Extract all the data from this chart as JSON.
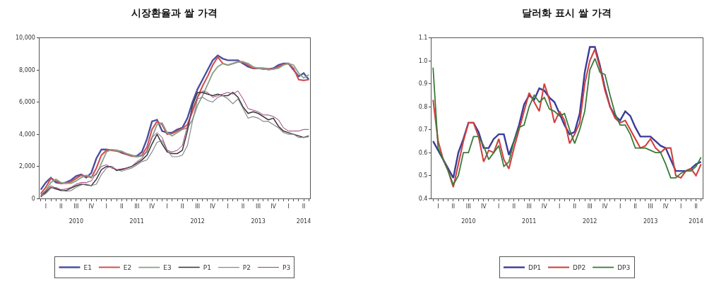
{
  "chart_data": [
    {
      "type": "line",
      "title": "시장환율과 쌀 가격",
      "legend": "bottom",
      "categories": [
        null,
        "I",
        null,
        null,
        "II",
        null,
        null,
        "III\n2010",
        null,
        null,
        "IV",
        null,
        null,
        "I",
        null,
        null,
        "II",
        null,
        null,
        "III\n2011",
        null,
        null,
        "IV",
        null,
        null,
        "I",
        null,
        null,
        "II",
        null,
        null,
        "III\n2012",
        null,
        null,
        "IV",
        null,
        null,
        "I",
        null,
        null,
        "II",
        null,
        null,
        "III\n2013",
        null,
        null,
        "IV",
        null,
        null,
        "I",
        null,
        null,
        "II\n2014",
        null
      ],
      "ylim": [
        0,
        10000
      ],
      "yticks": [
        {
          "value": 0,
          "label": "0"
        },
        {
          "value": 2000,
          "label": "2,000"
        },
        {
          "value": 4000,
          "label": "4,000"
        },
        {
          "value": 6000,
          "label": "6,000"
        },
        {
          "value": 8000,
          "label": "8,000"
        },
        {
          "value": 10000,
          "label": "10,000"
        }
      ],
      "series": [
        {
          "name": "E1",
          "color": "#4b4fa0",
          "values": [
            550,
            1000,
            1300,
            1000,
            950,
            1000,
            1150,
            1400,
            1500,
            1300,
            1600,
            2500,
            3050,
            3050,
            3000,
            3000,
            2850,
            2750,
            2650,
            2650,
            2900,
            3700,
            4800,
            4900,
            4200,
            4100,
            4100,
            4300,
            4400,
            5000,
            6000,
            6800,
            7400,
            8000,
            8600,
            8900,
            8700,
            8600,
            8600,
            8600,
            8400,
            8200,
            8100,
            8100,
            8100,
            8050,
            8100,
            8300,
            8400,
            8400,
            8000,
            7600,
            7800,
            7400
          ]
        },
        {
          "name": "E2",
          "color": "#d05050",
          "values": [
            300,
            700,
            1250,
            1100,
            950,
            950,
            1050,
            1250,
            1450,
            1400,
            1300,
            1900,
            2700,
            3000,
            3000,
            2950,
            2900,
            2750,
            2650,
            2600,
            2700,
            3200,
            4300,
            4800,
            4600,
            4000,
            4050,
            4200,
            4350,
            4600,
            5400,
            6300,
            7000,
            7600,
            8300,
            8800,
            8400,
            8300,
            8400,
            8500,
            8500,
            8300,
            8100,
            8100,
            8050,
            8050,
            8050,
            8200,
            8350,
            8400,
            8100,
            7400,
            7350,
            7400
          ]
        },
        {
          "name": "E3",
          "color": "#8aa08a",
          "values": [
            200,
            500,
            1000,
            1200,
            1000,
            950,
            950,
            1100,
            1300,
            1450,
            1350,
            1500,
            2200,
            2900,
            3050,
            3000,
            2950,
            2800,
            2700,
            2600,
            2650,
            2900,
            3800,
            4600,
            4700,
            4100,
            3900,
            4100,
            4300,
            4400,
            4900,
            5800,
            6400,
            7100,
            7800,
            8200,
            8400,
            8300,
            8400,
            8500,
            8500,
            8400,
            8200,
            8100,
            8100,
            8000,
            8050,
            8100,
            8300,
            8400,
            8300,
            7800,
            7500,
            7700
          ]
        },
        {
          "name": "P1",
          "color": "#333333",
          "values": [
            100,
            400,
            700,
            600,
            500,
            500,
            650,
            800,
            900,
            850,
            800,
            1200,
            1800,
            2000,
            2000,
            1750,
            1800,
            1900,
            2000,
            2200,
            2400,
            2700,
            3400,
            4000,
            3400,
            2900,
            2800,
            2800,
            3000,
            4200,
            5800,
            6600,
            6600,
            6500,
            6400,
            6500,
            6400,
            6400,
            6600,
            6300,
            5700,
            5300,
            5400,
            5300,
            5100,
            4900,
            5000,
            4500,
            4200,
            4100,
            4000,
            3900,
            3800,
            3900
          ]
        },
        {
          "name": "P2",
          "color": "#888888",
          "values": [
            150,
            300,
            650,
            700,
            550,
            450,
            500,
            700,
            850,
            900,
            800,
            900,
            1500,
            1900,
            2000,
            1800,
            1700,
            1800,
            1900,
            2100,
            2300,
            2400,
            2900,
            3500,
            3600,
            3000,
            2600,
            2600,
            2700,
            3300,
            4800,
            6200,
            6300,
            6100,
            6000,
            6300,
            6400,
            6200,
            5900,
            6200,
            5600,
            5000,
            5100,
            5000,
            4800,
            4800,
            4600,
            4400,
            4100,
            4000,
            4000,
            3800,
            3800,
            3850
          ]
        },
        {
          "name": "P3",
          "color": "#9a3a7a",
          "values": [
            200,
            500,
            800,
            650,
            550,
            600,
            700,
            900,
            1000,
            1000,
            1100,
            1600,
            2000,
            2100,
            1900,
            1800,
            1850,
            1900,
            2000,
            2300,
            2500,
            3000,
            3800,
            4100,
            3800,
            3000,
            2900,
            3000,
            3300,
            4500,
            5600,
            6300,
            6700,
            6600,
            6300,
            6400,
            6500,
            6600,
            6500,
            6700,
            6200,
            5600,
            5500,
            5400,
            5200,
            5200,
            5100,
            4900,
            4400,
            4200,
            4200,
            4200,
            4300,
            4300
          ]
        }
      ]
    },
    {
      "type": "line",
      "title": "달러화 표시 쌀 가격",
      "legend": "bottom",
      "categories": [
        null,
        "I",
        null,
        null,
        "II",
        null,
        null,
        "III\n2010",
        null,
        null,
        "IV",
        null,
        null,
        "I",
        null,
        null,
        "II",
        null,
        null,
        "III\n2011",
        null,
        null,
        "IV",
        null,
        null,
        "I",
        null,
        null,
        "II",
        null,
        null,
        "III\n2012",
        null,
        null,
        "IV",
        null,
        null,
        "I",
        null,
        null,
        "II",
        null,
        null,
        "III\n2013",
        null,
        null,
        "IV",
        null,
        null,
        "I",
        null,
        null,
        "II\n2014",
        null
      ],
      "ylim": [
        0.4,
        1.1
      ],
      "yticks": [
        {
          "value": 0.4,
          "label": "0.4"
        },
        {
          "value": 0.5,
          "label": "0.5"
        },
        {
          "value": 0.6,
          "label": "0.6"
        },
        {
          "value": 0.7,
          "label": "0.7"
        },
        {
          "value": 0.8,
          "label": "0.8"
        },
        {
          "value": 0.9,
          "label": "0.9"
        },
        {
          "value": 1.0,
          "label": "1.0"
        },
        {
          "value": 1.1,
          "label": "1.1"
        }
      ],
      "series": [
        {
          "name": "DP1",
          "color": "#3a3a9a",
          "values": [
            0.65,
            0.61,
            0.57,
            0.53,
            0.49,
            0.6,
            0.66,
            0.73,
            0.73,
            0.69,
            0.62,
            0.62,
            0.66,
            0.68,
            0.68,
            0.59,
            0.65,
            0.72,
            0.81,
            0.85,
            0.83,
            0.88,
            0.87,
            0.84,
            0.82,
            0.77,
            0.72,
            0.68,
            0.69,
            0.77,
            0.95,
            1.06,
            1.06,
            0.98,
            0.88,
            0.8,
            0.76,
            0.74,
            0.78,
            0.76,
            0.71,
            0.67,
            0.67,
            0.67,
            0.65,
            0.63,
            0.62,
            0.57,
            0.52,
            0.52,
            0.52,
            0.53,
            0.55,
            0.56
          ]
        },
        {
          "name": "DP2",
          "color": "#d04040",
          "values": [
            0.83,
            0.65,
            0.57,
            0.52,
            0.45,
            0.55,
            0.65,
            0.73,
            0.73,
            0.67,
            0.56,
            0.61,
            0.6,
            0.66,
            0.57,
            0.53,
            0.62,
            0.7,
            0.78,
            0.86,
            0.82,
            0.78,
            0.9,
            0.83,
            0.73,
            0.78,
            0.74,
            0.64,
            0.68,
            0.73,
            0.9,
            1.0,
            1.05,
            0.97,
            0.87,
            0.8,
            0.75,
            0.73,
            0.74,
            0.7,
            0.66,
            0.62,
            0.63,
            0.66,
            0.62,
            0.6,
            0.62,
            0.62,
            0.5,
            0.49,
            0.52,
            0.53,
            0.5,
            0.55
          ]
        },
        {
          "name": "DP3",
          "color": "#3a7a3a",
          "values": [
            0.97,
            0.62,
            0.57,
            0.52,
            0.46,
            0.5,
            0.6,
            0.6,
            0.67,
            0.67,
            0.63,
            0.57,
            0.6,
            0.63,
            0.54,
            0.56,
            0.65,
            0.71,
            0.72,
            0.8,
            0.85,
            0.82,
            0.84,
            0.79,
            0.78,
            0.76,
            0.77,
            0.7,
            0.64,
            0.7,
            0.78,
            0.96,
            1.01,
            0.95,
            0.94,
            0.85,
            0.77,
            0.72,
            0.72,
            0.68,
            0.62,
            0.62,
            0.62,
            0.61,
            0.6,
            0.6,
            0.55,
            0.49,
            0.49,
            0.51,
            0.52,
            0.52,
            0.54,
            0.58
          ]
        }
      ]
    }
  ]
}
